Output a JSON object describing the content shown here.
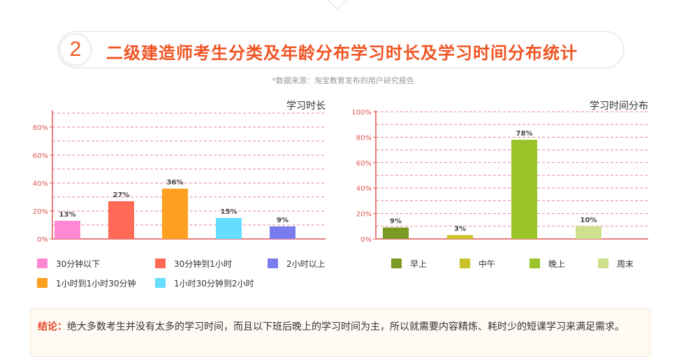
{
  "header": {
    "number": "2",
    "title": "二级建造师考生分类及年龄分布学习时长及学习时间分布统计",
    "source": "*数据来源：淘宝教育发布的用户研究报告"
  },
  "chart_data": [
    {
      "type": "bar",
      "title": "学习时长",
      "categories": [
        "30分钟以下",
        "30分钟到1小时",
        "1小时到1小时30分钟",
        "1小时30分钟到2小时",
        "2小时以上"
      ],
      "values": [
        13,
        27,
        36,
        15,
        9
      ],
      "value_labels": [
        "13%",
        "27%",
        "36%",
        "15%",
        "9%"
      ],
      "colors": [
        "#ff88d4",
        "#ff6a57",
        "#ff9f22",
        "#66dcff",
        "#7b7bf0"
      ],
      "y_ticks": [
        "0%",
        "20%",
        "40%",
        "60%",
        "80%"
      ],
      "ylim": [
        0,
        90
      ],
      "grid": true,
      "legend": {
        "rows": [
          [
            {
              "label": "30分钟以下",
              "color": "#ff88d4"
            },
            {
              "label": "30分钟到1小时",
              "color": "#ff6a57"
            },
            {
              "label": "2小时以上",
              "color": "#7b7bf0"
            }
          ],
          [
            {
              "label": "1小时到1小时30分钟",
              "color": "#ff9f22"
            },
            {
              "label": "1小时30分钟到2小时",
              "color": "#66dcff"
            }
          ]
        ]
      }
    },
    {
      "type": "bar",
      "title": "学习时间分布",
      "categories": [
        "早上",
        "中午",
        "晚上",
        "周末"
      ],
      "values": [
        9,
        3,
        78,
        10
      ],
      "value_labels": [
        "9%",
        "3%",
        "78%",
        "10%"
      ],
      "colors": [
        "#7a9a24",
        "#c8c32a",
        "#9ac42a",
        "#cfe08c"
      ],
      "y_ticks": [
        "0%",
        "20%",
        "40%",
        "60%",
        "80%",
        "100%"
      ],
      "ylim": [
        0,
        100
      ],
      "grid": true,
      "legend": {
        "rows": [
          [
            {
              "label": "早上",
              "color": "#7a9a24"
            },
            {
              "label": "中午",
              "color": "#c8c32a"
            },
            {
              "label": "晚上",
              "color": "#9ac42a"
            },
            {
              "label": "周末",
              "color": "#cfe08c"
            }
          ]
        ]
      }
    }
  ],
  "conclusion": {
    "label": "结论：",
    "text": "绝大多数考生并没有太多的学习时间，而且以下班后晚上的学习时间为主，所以就需要内容精炼、耗时少的短课学习来满足需求。"
  }
}
